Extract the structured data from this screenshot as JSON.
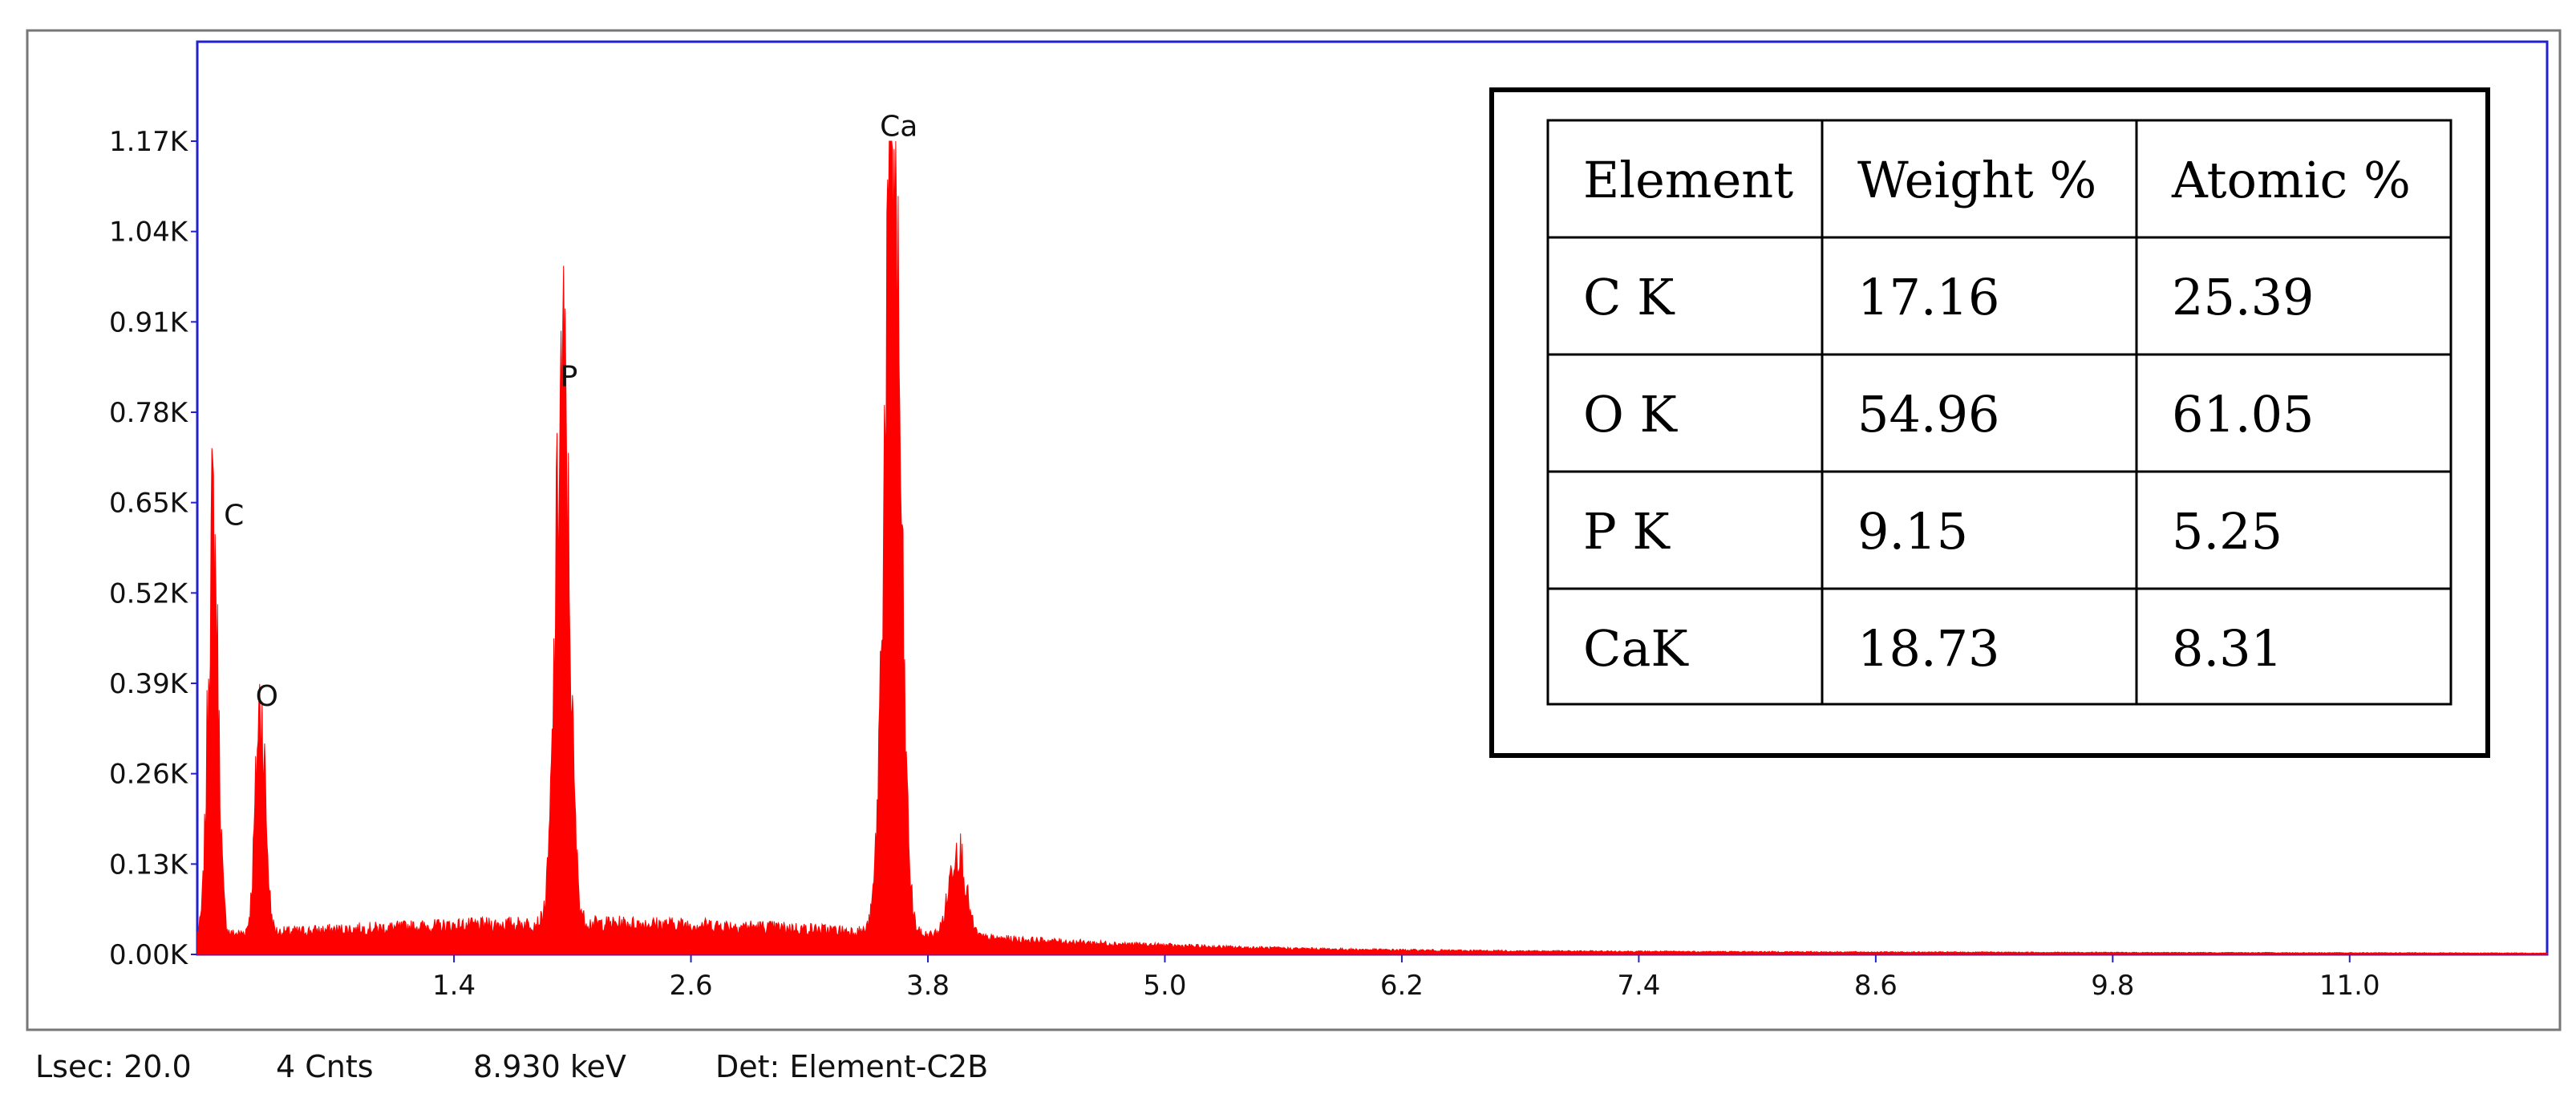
{
  "chart_data": {
    "type": "area",
    "title": "",
    "xlabel": "",
    "ylabel": "",
    "xlim": [
      0.1,
      12.0
    ],
    "ylim": [
      0,
      1.17
    ],
    "x_ticks": [
      "1.4",
      "2.6",
      "3.8",
      "5.0",
      "6.2",
      "7.4",
      "8.6",
      "9.8",
      "11.0"
    ],
    "y_ticks": [
      "0.00K",
      "0.13K",
      "0.26K",
      "0.39K",
      "0.52K",
      "0.65K",
      "0.78K",
      "0.91K",
      "1.04K",
      "1.17K"
    ],
    "y_unit": "K counts",
    "grid": false,
    "color": "#ff0000",
    "peaks": [
      {
        "label": "C",
        "x": 0.18,
        "height": 0.59,
        "width": 0.025
      },
      {
        "label": "O",
        "x": 0.42,
        "height": 0.33,
        "width": 0.025
      },
      {
        "label": "P",
        "x": 1.95,
        "height": 0.79,
        "width": 0.035
      },
      {
        "label": "Ca",
        "x": 3.62,
        "height": 1.15,
        "width": 0.04
      },
      {
        "label": "",
        "x": 3.95,
        "height": 0.13,
        "width": 0.04
      }
    ],
    "table": {
      "headers": [
        "Element",
        "Weight %",
        "Atomic %"
      ],
      "rows": [
        [
          "C K",
          "17.16",
          "25.39"
        ],
        [
          "O K",
          "54.96",
          "61.05"
        ],
        [
          "P K",
          "9.15",
          "5.25"
        ],
        [
          "CaK",
          "18.73",
          "8.31"
        ]
      ]
    }
  },
  "status": {
    "lsec": "Lsec: 20.0",
    "counts": "4 Cnts",
    "kev": "8.930 keV",
    "detector": "Det: Element-C2B"
  }
}
